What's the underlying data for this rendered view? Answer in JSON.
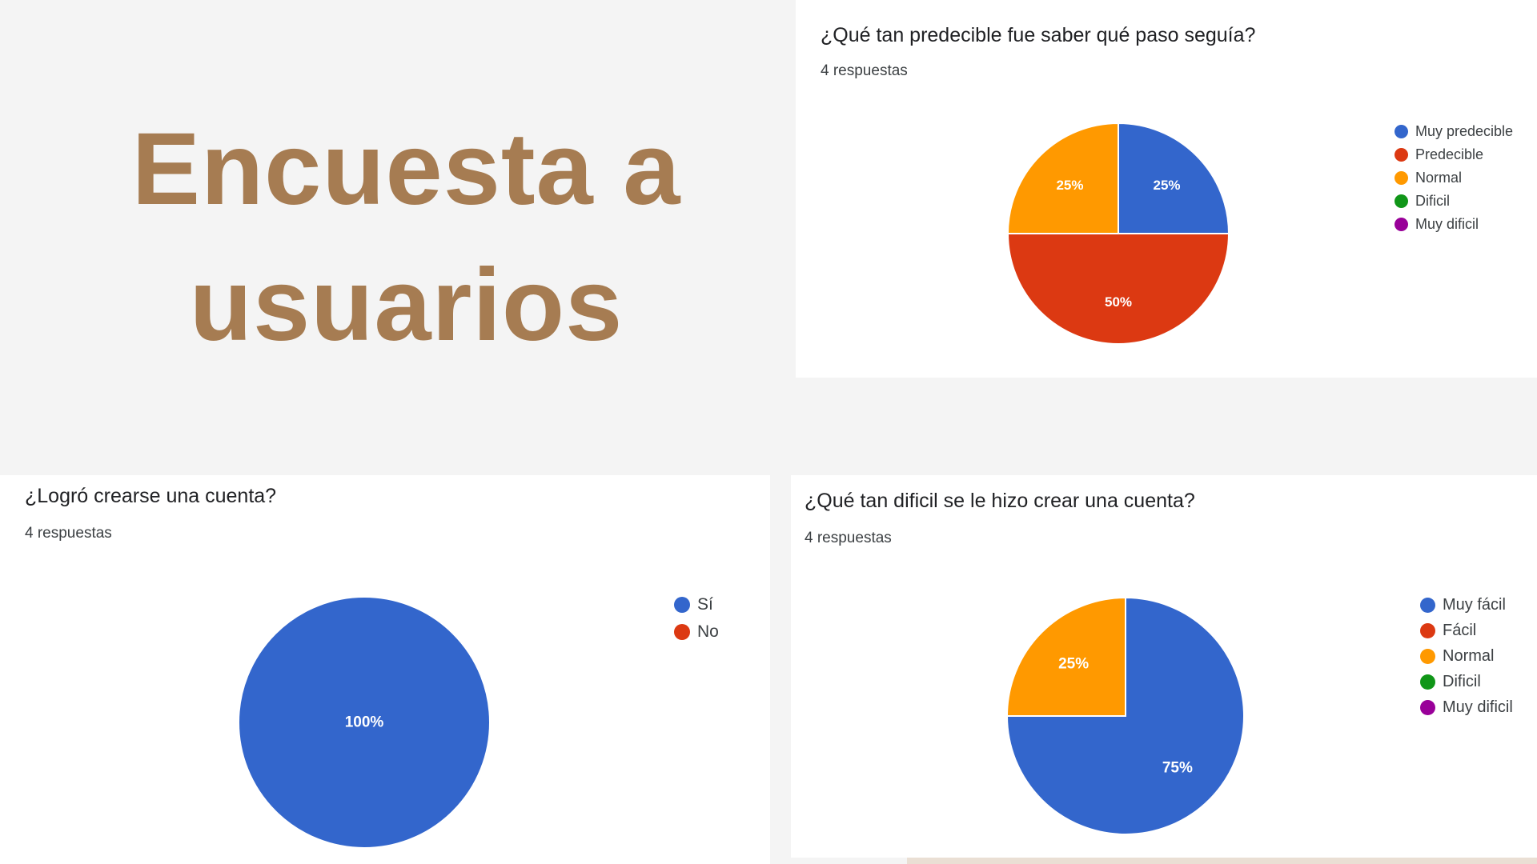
{
  "title": {
    "line1": "Encuesta a",
    "line2": "usuarios"
  },
  "chart_data": [
    {
      "type": "pie",
      "title": "¿Qué tan predecible fue saber qué paso seguía?",
      "subtitle": "4 respuestas",
      "categories": [
        "Muy predecible",
        "Predecible",
        "Normal",
        "Dificil",
        "Muy dificil"
      ],
      "values": [
        25,
        50,
        25,
        0,
        0
      ],
      "labels": [
        "25%",
        "50%",
        "25%",
        "",
        ""
      ],
      "colors": [
        "#3366cc",
        "#dc3912",
        "#ff9900",
        "#109618",
        "#990099"
      ],
      "legend_position": "right"
    },
    {
      "type": "pie",
      "title": "¿Logró crearse una cuenta?",
      "subtitle": "4 respuestas",
      "categories": [
        "Sí",
        "No"
      ],
      "values": [
        100,
        0
      ],
      "labels": [
        "100%",
        ""
      ],
      "colors": [
        "#3366cc",
        "#dc3912"
      ],
      "legend_position": "right"
    },
    {
      "type": "pie",
      "title": "¿Qué tan dificil se le hizo crear una cuenta?",
      "subtitle": "4 respuestas",
      "categories": [
        "Muy fácil",
        "Fácil",
        "Normal",
        "Dificil",
        "Muy dificil"
      ],
      "values": [
        75,
        0,
        25,
        0,
        0
      ],
      "labels": [
        "75%",
        "",
        "25%",
        "",
        ""
      ],
      "colors": [
        "#3366cc",
        "#dc3912",
        "#ff9900",
        "#109618",
        "#990099"
      ],
      "legend_position": "right"
    }
  ]
}
